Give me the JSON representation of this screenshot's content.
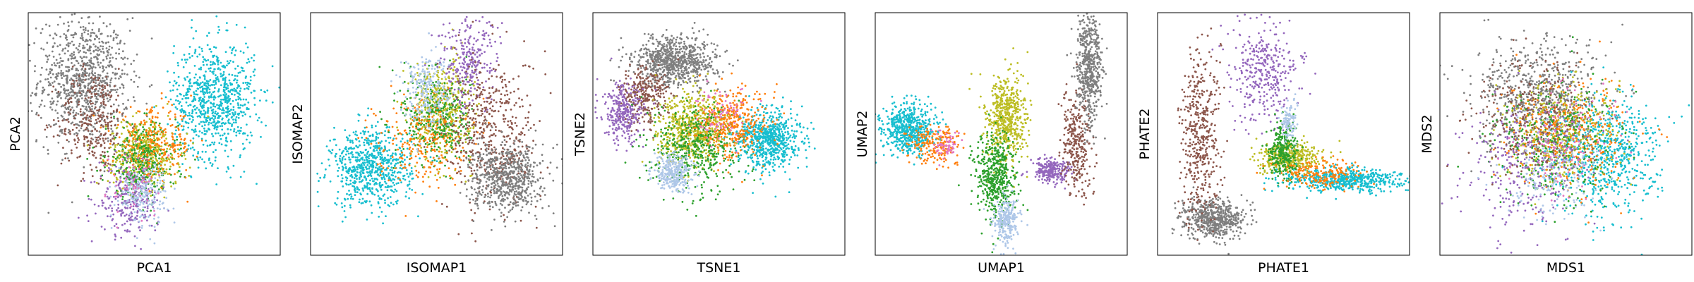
{
  "figure": {
    "palette": [
      "#17becf",
      "#ff7f0e",
      "#2ca02c",
      "#bcbd22",
      "#aec7e8",
      "#9467bd",
      "#8c564b",
      "#7f7f7f",
      "#e377c2",
      "#d62728",
      "#1f77b4"
    ]
  },
  "chart_data": [
    {
      "type": "scatter",
      "xlabel": "PCA1",
      "ylabel": "PCA2",
      "xlim": [
        0,
        1
      ],
      "ylim": [
        0,
        1
      ],
      "grid": false,
      "ticks": false,
      "clusters": [
        {
          "color": "#7f7f7f",
          "n": 900,
          "cx": 0.22,
          "cy": 0.72,
          "sx": 0.09,
          "sy": 0.13
        },
        {
          "color": "#8c564b",
          "n": 300,
          "cx": 0.26,
          "cy": 0.55,
          "sx": 0.07,
          "sy": 0.11
        },
        {
          "color": "#17becf",
          "n": 800,
          "cx": 0.74,
          "cy": 0.64,
          "sx": 0.08,
          "sy": 0.12
        },
        {
          "color": "#bcbd22",
          "n": 450,
          "cx": 0.46,
          "cy": 0.42,
          "sx": 0.07,
          "sy": 0.07
        },
        {
          "color": "#2ca02c",
          "n": 350,
          "cx": 0.45,
          "cy": 0.38,
          "sx": 0.07,
          "sy": 0.08
        },
        {
          "color": "#ff7f0e",
          "n": 250,
          "cx": 0.5,
          "cy": 0.46,
          "sx": 0.08,
          "sy": 0.07
        },
        {
          "color": "#9467bd",
          "n": 250,
          "cx": 0.4,
          "cy": 0.22,
          "sx": 0.06,
          "sy": 0.07
        },
        {
          "color": "#aec7e8",
          "n": 200,
          "cx": 0.45,
          "cy": 0.26,
          "sx": 0.05,
          "sy": 0.06
        },
        {
          "color": "#e377c2",
          "n": 60,
          "cx": 0.43,
          "cy": 0.3,
          "sx": 0.06,
          "sy": 0.07
        }
      ]
    },
    {
      "type": "scatter",
      "xlabel": "ISOMAP1",
      "ylabel": "ISOMAP2",
      "xlim": [
        0,
        1
      ],
      "ylim": [
        0,
        1
      ],
      "grid": false,
      "ticks": false,
      "clusters": [
        {
          "color": "#17becf",
          "n": 700,
          "cx": 0.24,
          "cy": 0.36,
          "sx": 0.08,
          "sy": 0.08
        },
        {
          "color": "#bcbd22",
          "n": 450,
          "cx": 0.52,
          "cy": 0.6,
          "sx": 0.06,
          "sy": 0.1
        },
        {
          "color": "#2ca02c",
          "n": 350,
          "cx": 0.5,
          "cy": 0.56,
          "sx": 0.07,
          "sy": 0.1
        },
        {
          "color": "#ff7f0e",
          "n": 250,
          "cx": 0.44,
          "cy": 0.48,
          "sx": 0.09,
          "sy": 0.09
        },
        {
          "color": "#aec7e8",
          "n": 250,
          "cx": 0.46,
          "cy": 0.68,
          "sx": 0.05,
          "sy": 0.08
        },
        {
          "color": "#9467bd",
          "n": 250,
          "cx": 0.63,
          "cy": 0.8,
          "sx": 0.06,
          "sy": 0.09
        },
        {
          "color": "#8c564b",
          "n": 500,
          "cx": 0.72,
          "cy": 0.5,
          "sx": 0.09,
          "sy": 0.16
        },
        {
          "color": "#7f7f7f",
          "n": 650,
          "cx": 0.78,
          "cy": 0.32,
          "sx": 0.07,
          "sy": 0.07
        }
      ]
    },
    {
      "type": "scatter",
      "xlabel": "TSNE1",
      "ylabel": "TSNE2",
      "xlim": [
        0,
        1
      ],
      "ylim": [
        0,
        1
      ],
      "grid": false,
      "ticks": false,
      "clusters": [
        {
          "color": "#7f7f7f",
          "n": 800,
          "cx": 0.33,
          "cy": 0.8,
          "sx": 0.08,
          "sy": 0.05
        },
        {
          "color": "#8c564b",
          "n": 300,
          "cx": 0.2,
          "cy": 0.66,
          "sx": 0.05,
          "sy": 0.06
        },
        {
          "color": "#9467bd",
          "n": 300,
          "cx": 0.12,
          "cy": 0.58,
          "sx": 0.04,
          "sy": 0.06
        },
        {
          "color": "#bcbd22",
          "n": 650,
          "cx": 0.4,
          "cy": 0.52,
          "sx": 0.07,
          "sy": 0.07
        },
        {
          "color": "#2ca02c",
          "n": 450,
          "cx": 0.41,
          "cy": 0.44,
          "sx": 0.09,
          "sy": 0.09
        },
        {
          "color": "#17becf",
          "n": 700,
          "cx": 0.7,
          "cy": 0.48,
          "sx": 0.06,
          "sy": 0.06
        },
        {
          "color": "#ff7f0e",
          "n": 350,
          "cx": 0.56,
          "cy": 0.54,
          "sx": 0.07,
          "sy": 0.07
        },
        {
          "color": "#aec7e8",
          "n": 300,
          "cx": 0.32,
          "cy": 0.34,
          "sx": 0.04,
          "sy": 0.04
        },
        {
          "color": "#e377c2",
          "n": 80,
          "cx": 0.5,
          "cy": 0.58,
          "sx": 0.06,
          "sy": 0.05
        }
      ]
    },
    {
      "type": "scatter",
      "xlabel": "UMAP1",
      "ylabel": "UMAP2",
      "xlim": [
        0,
        1
      ],
      "ylim": [
        0,
        1
      ],
      "grid": false,
      "ticks": false,
      "clusters": [
        {
          "color": "#17becf",
          "n": 600,
          "cx": 0.13,
          "cy": 0.52,
          "sx": 0.05,
          "sy": 0.05
        },
        {
          "color": "#ff7f0e",
          "n": 200,
          "cx": 0.24,
          "cy": 0.46,
          "sx": 0.05,
          "sy": 0.04
        },
        {
          "color": "#bcbd22",
          "n": 550,
          "cx": 0.52,
          "cy": 0.56,
          "sx": 0.04,
          "sy": 0.09
        },
        {
          "color": "#2ca02c",
          "n": 500,
          "cx": 0.48,
          "cy": 0.32,
          "sx": 0.04,
          "sy": 0.09
        },
        {
          "color": "#aec7e8",
          "n": 250,
          "cx": 0.52,
          "cy": 0.14,
          "sx": 0.025,
          "sy": 0.05
        },
        {
          "color": "#9467bd",
          "n": 250,
          "cx": 0.7,
          "cy": 0.35,
          "sx": 0.04,
          "sy": 0.025
        },
        {
          "color": "#8c564b",
          "n": 300,
          "cx": 0.8,
          "cy": 0.45,
          "sx": 0.03,
          "sy": 0.1
        },
        {
          "color": "#7f7f7f",
          "n": 550,
          "cx": 0.85,
          "cy": 0.78,
          "sx": 0.025,
          "sy": 0.11
        },
        {
          "color": "#e377c2",
          "n": 60,
          "cx": 0.28,
          "cy": 0.46,
          "sx": 0.03,
          "sy": 0.03
        }
      ]
    },
    {
      "type": "scatter",
      "xlabel": "PHATE1",
      "ylabel": "PHATE2",
      "xlim": [
        0,
        1
      ],
      "ylim": [
        0,
        1
      ],
      "grid": false,
      "ticks": false,
      "clusters": [
        {
          "color": "#7f7f7f",
          "n": 600,
          "cx": 0.22,
          "cy": 0.15,
          "sx": 0.06,
          "sy": 0.04
        },
        {
          "color": "#8c564b",
          "n": 450,
          "cx": 0.17,
          "cy": 0.5,
          "sx": 0.04,
          "sy": 0.18
        },
        {
          "color": "#9467bd",
          "n": 350,
          "cx": 0.43,
          "cy": 0.76,
          "sx": 0.07,
          "sy": 0.1
        },
        {
          "color": "#bcbd22",
          "n": 400,
          "cx": 0.52,
          "cy": 0.4,
          "sx": 0.06,
          "sy": 0.03
        },
        {
          "color": "#2ca02c",
          "n": 300,
          "cx": 0.5,
          "cy": 0.43,
          "sx": 0.03,
          "sy": 0.06
        },
        {
          "color": "#17becf",
          "n": 550,
          "cx": 0.74,
          "cy": 0.31,
          "sx": 0.12,
          "sy": 0.025
        },
        {
          "color": "#ff7f0e",
          "n": 200,
          "cx": 0.64,
          "cy": 0.34,
          "sx": 0.08,
          "sy": 0.03
        },
        {
          "color": "#aec7e8",
          "n": 100,
          "cx": 0.52,
          "cy": 0.55,
          "sx": 0.015,
          "sy": 0.04
        }
      ]
    },
    {
      "type": "scatter",
      "xlabel": "MDS1",
      "ylabel": "MDS2",
      "xlim": [
        0,
        1
      ],
      "ylim": [
        0,
        1
      ],
      "grid": false,
      "ticks": false,
      "clusters": [
        {
          "color": "#7f7f7f",
          "n": 700,
          "cx": 0.4,
          "cy": 0.65,
          "sx": 0.13,
          "sy": 0.12
        },
        {
          "color": "#17becf",
          "n": 650,
          "cx": 0.66,
          "cy": 0.4,
          "sx": 0.1,
          "sy": 0.12
        },
        {
          "color": "#bcbd22",
          "n": 400,
          "cx": 0.48,
          "cy": 0.5,
          "sx": 0.11,
          "sy": 0.11
        },
        {
          "color": "#2ca02c",
          "n": 350,
          "cx": 0.46,
          "cy": 0.45,
          "sx": 0.12,
          "sy": 0.12
        },
        {
          "color": "#ff7f0e",
          "n": 300,
          "cx": 0.5,
          "cy": 0.5,
          "sx": 0.13,
          "sy": 0.12
        },
        {
          "color": "#9467bd",
          "n": 300,
          "cx": 0.34,
          "cy": 0.36,
          "sx": 0.11,
          "sy": 0.13
        },
        {
          "color": "#8c564b",
          "n": 250,
          "cx": 0.36,
          "cy": 0.58,
          "sx": 0.11,
          "sy": 0.12
        },
        {
          "color": "#aec7e8",
          "n": 200,
          "cx": 0.45,
          "cy": 0.35,
          "sx": 0.1,
          "sy": 0.1
        },
        {
          "color": "#e377c2",
          "n": 100,
          "cx": 0.5,
          "cy": 0.48,
          "sx": 0.12,
          "sy": 0.12
        }
      ]
    }
  ]
}
